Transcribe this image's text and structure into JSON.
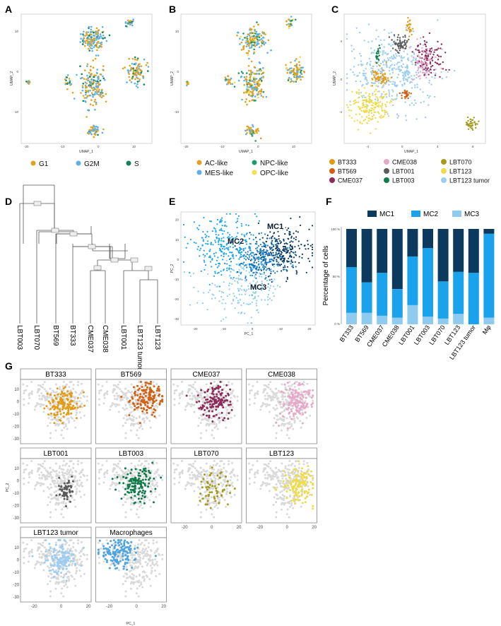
{
  "panels": {
    "A": {
      "label": "A",
      "xlabel": "UMAP_1",
      "ylabel": "UMAP_2",
      "xticks": [
        "-20",
        "-10",
        "0",
        "10"
      ],
      "yticks": [
        "10",
        "0",
        "-10"
      ],
      "legend": [
        {
          "name": "G1",
          "color": "#E1A21F"
        },
        {
          "name": "G2M",
          "color": "#5DB1E6"
        },
        {
          "name": "S",
          "color": "#138259"
        }
      ]
    },
    "B": {
      "label": "B",
      "xlabel": "UMAP_1",
      "ylabel": "UMAP_2",
      "xticks": [
        "-20",
        "-10",
        "0",
        "10"
      ],
      "yticks": [
        "10",
        "0",
        "-10"
      ],
      "legend": [
        {
          "name": "AC-like",
          "color": "#E1A21F"
        },
        {
          "name": "NPC-like",
          "color": "#1E9C6E"
        },
        {
          "name": "MES-like",
          "color": "#5DB1E6"
        },
        {
          "name": "OPC-like",
          "color": "#F0E04A"
        }
      ]
    },
    "C": {
      "label": "C",
      "xlabel": "UMAP_1",
      "ylabel": "UMAP_2",
      "xticks": [
        "-4",
        "0",
        "4",
        "8"
      ],
      "yticks": [
        "4",
        "0",
        "-4"
      ],
      "legend": [
        {
          "name": "BT333",
          "color": "#E49B14"
        },
        {
          "name": "CME038",
          "color": "#E7A7C8"
        },
        {
          "name": "LBT070",
          "color": "#A59A1E"
        },
        {
          "name": "BT569",
          "color": "#D35F12"
        },
        {
          "name": "LBT001",
          "color": "#5C5C5C"
        },
        {
          "name": "LBT123",
          "color": "#EEDB4C"
        },
        {
          "name": "CME037",
          "color": "#8B2C5A"
        },
        {
          "name": "LBT003",
          "color": "#0E7B4A"
        },
        {
          "name": "LBT123 tumor",
          "color": "#9DCDF0"
        }
      ]
    },
    "D": {
      "label": "D",
      "leaves": [
        "LBT003",
        "LBT070",
        "BT569",
        "BT333",
        "CME037",
        "CME038",
        "LBT001",
        "LBT123 tumor",
        "LBT123"
      ]
    },
    "E": {
      "label": "E",
      "xlabel": "PC_1",
      "ylabel": "PC_2",
      "xticks": [
        "-20",
        "-10",
        "0",
        "10",
        "20"
      ],
      "yticks": [
        "20",
        "10",
        "0",
        "-10",
        "-20",
        "-30"
      ],
      "cluster_labels": [
        "MC1",
        "MC2",
        "MC3"
      ]
    },
    "F": {
      "label": "F",
      "ylabel": "Percentage of cells",
      "yticks": [
        "100 %",
        "50 %",
        "0 %"
      ]
    },
    "G": {
      "label": "G",
      "xlabel": "PC_1",
      "ylabel": "PC_2",
      "xticks": [
        "-20",
        "0",
        "20"
      ],
      "yticks": [
        "10",
        "0",
        "-10",
        "-20",
        "-30"
      ],
      "facets": [
        {
          "title": "BT333",
          "color": "#E49B14"
        },
        {
          "title": "BT569",
          "color": "#D35F12"
        },
        {
          "title": "CME037",
          "color": "#8B2C5A"
        },
        {
          "title": "CME038",
          "color": "#E7A7C8"
        },
        {
          "title": "LBT001",
          "color": "#5C5C5C"
        },
        {
          "title": "LBT003",
          "color": "#0E7B4A"
        },
        {
          "title": "LBT070",
          "color": "#A59A1E"
        },
        {
          "title": "LBT123",
          "color": "#EEDB4C"
        },
        {
          "title": "LBT123 tumor",
          "color": "#9DCDF0"
        },
        {
          "title": "Macrophages",
          "color": "#4AA3E2"
        }
      ]
    }
  },
  "chart_data": {
    "type": "bar",
    "stacked": true,
    "categories": [
      "BT333",
      "BT569",
      "CME037",
      "CME038",
      "LBT001",
      "LBT003",
      "LBT070",
      "LBT123",
      "LBT123 tumor",
      "Mφ"
    ],
    "series": [
      {
        "name": "MC1",
        "color": "#0B3A5E",
        "values": [
          40,
          56,
          46,
          63,
          29,
          20,
          55,
          45,
          46,
          5
        ]
      },
      {
        "name": "MC2",
        "color": "#1AA3EC",
        "values": [
          48,
          32,
          45,
          30,
          51,
          72,
          39,
          44,
          54,
          88
        ]
      },
      {
        "name": "MC3",
        "color": "#8FCBEF",
        "values": [
          12,
          12,
          9,
          7,
          20,
          8,
          6,
          11,
          0,
          7
        ]
      }
    ],
    "ylabel": "Percentage of cells",
    "ylim": [
      0,
      100
    ],
    "legend_position": "top"
  }
}
